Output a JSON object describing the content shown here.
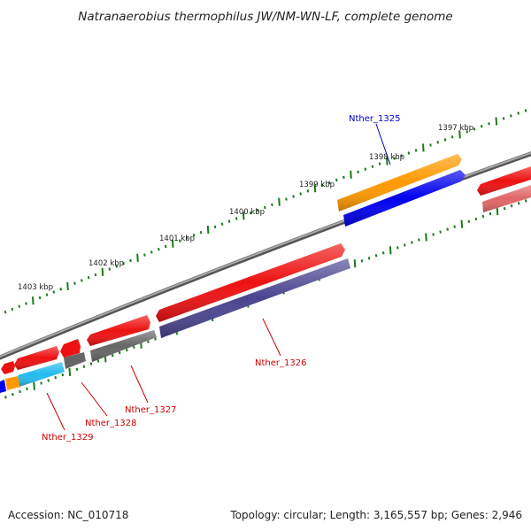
{
  "title": "Natranaerobius thermophilus JW/NM-WN-LF, complete genome",
  "footer": {
    "accession": "Accession: NC_010718",
    "topology": "Topology: circular; Length: 3,165,557 bp; Genes: 2,946"
  },
  "scale_labels": [
    "1397 kbp",
    "1398 kbp",
    "1399 kbp",
    "1400 kbp",
    "1401 kbp",
    "1402 kbp",
    "1403 kbp"
  ],
  "genes": [
    {
      "name": "Nther_1325",
      "color": "#0000cc"
    },
    {
      "name": "Nther_1326",
      "color": "#cc0000"
    },
    {
      "name": "Nther_1327",
      "color": "#cc0000"
    },
    {
      "name": "Nther_1328",
      "color": "#cc0000"
    },
    {
      "name": "Nther_1329",
      "color": "#cc0000"
    }
  ],
  "colors": {
    "backbone": "#888888",
    "tick": "#1a7a1a",
    "forward_gene": "#ee1111",
    "orange_gene": "#ff9900",
    "blue_gene": "#0000ee",
    "slate_gene": "#4b4590",
    "gray_gene": "#666666",
    "cyan_gene": "#22bbee",
    "pink_gene": "#e06666"
  }
}
